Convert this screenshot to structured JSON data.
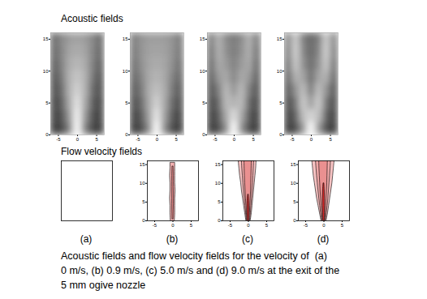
{
  "figure": {
    "row_titles": [
      "Acoustic fields",
      "Flow velocity fields"
    ],
    "panel_labels": [
      "(a)",
      "(b)",
      "(c)",
      "(d)"
    ],
    "caption": [
      "Acoustic fields and flow velocity fields for the velocity of  (a)",
      "0 m/s, (b) 0.9 m/s, (c) 5.0 m/s and (d) 9.0 m/s at the exit of the",
      "5 mm ogive nozzle"
    ]
  },
  "chart_data": [
    {
      "type": "heatmap",
      "xlim": [
        -7,
        7
      ],
      "ylim": [
        0,
        16
      ],
      "xticks": [
        -5,
        0,
        5
      ],
      "yticks": [
        0,
        5,
        10,
        15
      ],
      "zlim": [
        0,
        1
      ],
      "x_bins": [
        -7,
        -5,
        -3,
        -1,
        1,
        3,
        5,
        7
      ],
      "y_bins": [
        0,
        2,
        4,
        6,
        8,
        10,
        12,
        14,
        16
      ],
      "cells": [
        [
          0.12,
          0.18,
          0.45,
          1.0,
          0.45,
          0.18,
          0.12
        ],
        [
          0.14,
          0.22,
          0.55,
          0.95,
          0.55,
          0.22,
          0.14
        ],
        [
          0.16,
          0.28,
          0.62,
          0.88,
          0.62,
          0.28,
          0.16
        ],
        [
          0.2,
          0.34,
          0.66,
          0.8,
          0.66,
          0.34,
          0.2
        ],
        [
          0.22,
          0.4,
          0.66,
          0.74,
          0.66,
          0.4,
          0.22
        ],
        [
          0.26,
          0.44,
          0.63,
          0.68,
          0.63,
          0.44,
          0.26
        ],
        [
          0.3,
          0.46,
          0.6,
          0.62,
          0.6,
          0.46,
          0.3
        ],
        [
          0.32,
          0.47,
          0.56,
          0.58,
          0.56,
          0.47,
          0.32
        ]
      ]
    },
    {
      "type": "heatmap",
      "xlim": [
        -7,
        7
      ],
      "ylim": [
        0,
        16
      ],
      "xticks": [
        -5,
        0,
        5
      ],
      "yticks": [
        0,
        5,
        10,
        15
      ],
      "zlim": [
        0,
        1
      ],
      "x_bins": [
        -7,
        -5,
        -3,
        -1,
        1,
        3,
        5,
        7
      ],
      "y_bins": [
        0,
        2,
        4,
        6,
        8,
        10,
        12,
        14,
        16
      ],
      "cells": [
        [
          0.12,
          0.2,
          0.5,
          1.0,
          0.5,
          0.2,
          0.12
        ],
        [
          0.15,
          0.26,
          0.58,
          0.9,
          0.58,
          0.26,
          0.15
        ],
        [
          0.2,
          0.33,
          0.62,
          0.8,
          0.62,
          0.33,
          0.2
        ],
        [
          0.25,
          0.4,
          0.64,
          0.72,
          0.64,
          0.4,
          0.25
        ],
        [
          0.3,
          0.45,
          0.62,
          0.66,
          0.62,
          0.45,
          0.3
        ],
        [
          0.34,
          0.5,
          0.6,
          0.62,
          0.6,
          0.5,
          0.34
        ],
        [
          0.38,
          0.52,
          0.58,
          0.58,
          0.58,
          0.52,
          0.38
        ],
        [
          0.4,
          0.52,
          0.56,
          0.56,
          0.56,
          0.52,
          0.4
        ]
      ]
    },
    {
      "type": "heatmap",
      "xlim": [
        -7,
        7
      ],
      "ylim": [
        0,
        16
      ],
      "xticks": [
        -5,
        0,
        5
      ],
      "yticks": [
        0,
        5,
        10,
        15
      ],
      "zlim": [
        0,
        1
      ],
      "x_bins": [
        -7,
        -5,
        -3,
        -1,
        1,
        3,
        5,
        7
      ],
      "y_bins": [
        0,
        2,
        4,
        6,
        8,
        10,
        12,
        14,
        16
      ],
      "cells": [
        [
          0.12,
          0.2,
          0.5,
          1.0,
          0.5,
          0.2,
          0.12
        ],
        [
          0.15,
          0.25,
          0.62,
          0.85,
          0.62,
          0.25,
          0.15
        ],
        [
          0.18,
          0.32,
          0.7,
          0.65,
          0.7,
          0.32,
          0.18
        ],
        [
          0.22,
          0.42,
          0.7,
          0.52,
          0.7,
          0.42,
          0.22
        ],
        [
          0.25,
          0.55,
          0.62,
          0.45,
          0.62,
          0.55,
          0.25
        ],
        [
          0.3,
          0.62,
          0.55,
          0.42,
          0.55,
          0.62,
          0.3
        ],
        [
          0.35,
          0.65,
          0.5,
          0.4,
          0.5,
          0.65,
          0.35
        ],
        [
          0.4,
          0.66,
          0.48,
          0.4,
          0.48,
          0.66,
          0.4
        ]
      ]
    },
    {
      "type": "heatmap",
      "xlim": [
        -7,
        7
      ],
      "ylim": [
        0,
        16
      ],
      "xticks": [
        -5,
        0,
        5
      ],
      "yticks": [
        0,
        5,
        10,
        15
      ],
      "zlim": [
        0,
        1
      ],
      "x_bins": [
        -7,
        -5,
        -3,
        -1,
        1,
        3,
        5,
        7
      ],
      "y_bins": [
        0,
        2,
        4,
        6,
        8,
        10,
        12,
        14,
        16
      ],
      "cells": [
        [
          0.12,
          0.2,
          0.55,
          1.0,
          0.55,
          0.2,
          0.12
        ],
        [
          0.15,
          0.28,
          0.72,
          0.8,
          0.72,
          0.28,
          0.15
        ],
        [
          0.18,
          0.38,
          0.78,
          0.55,
          0.78,
          0.38,
          0.18
        ],
        [
          0.22,
          0.52,
          0.72,
          0.4,
          0.72,
          0.52,
          0.22
        ],
        [
          0.28,
          0.66,
          0.6,
          0.35,
          0.6,
          0.66,
          0.28
        ],
        [
          0.34,
          0.76,
          0.5,
          0.33,
          0.5,
          0.76,
          0.34
        ],
        [
          0.4,
          0.8,
          0.45,
          0.32,
          0.45,
          0.8,
          0.4
        ],
        [
          0.45,
          0.78,
          0.42,
          0.32,
          0.42,
          0.78,
          0.45
        ]
      ]
    },
    {
      "type": "contour",
      "tick_labels": false,
      "xlim": [
        -7,
        7
      ],
      "ylim": [
        0,
        16
      ],
      "contours": []
    },
    {
      "type": "contour",
      "xlim": [
        -7,
        7
      ],
      "ylim": [
        0,
        16
      ],
      "xticks": [
        -5,
        0,
        5
      ],
      "yticks": [
        0,
        5,
        10,
        15
      ],
      "contours": [
        {
          "color": "#f2b0b0",
          "y": [
            0,
            2,
            4,
            6,
            8,
            10,
            12,
            14,
            15.5
          ],
          "left": [
            -0.6,
            -0.7,
            -0.7,
            -0.8,
            -0.7,
            -0.7,
            -0.8,
            -0.7,
            -0.7
          ],
          "right": [
            0.5,
            0.6,
            0.6,
            0.6,
            0.7,
            0.6,
            0.6,
            0.6,
            0.6
          ]
        },
        {
          "color": "#e88a8a",
          "y": [
            0.5,
            3,
            6,
            9,
            12,
            14.5
          ],
          "left": [
            -0.15,
            -0.2,
            -0.2,
            -0.2,
            -0.2,
            -0.15
          ],
          "right": [
            0.15,
            0.2,
            0.25,
            0.2,
            0.2,
            0.15
          ]
        }
      ]
    },
    {
      "type": "contour",
      "xlim": [
        -7,
        7
      ],
      "ylim": [
        0,
        16
      ],
      "xticks": [
        -5,
        0,
        5
      ],
      "yticks": [
        0,
        5,
        10,
        15
      ],
      "contours": [
        {
          "color": "#f6c2c2",
          "y": [
            0,
            2,
            4,
            6,
            8,
            10,
            12,
            14,
            16
          ],
          "left": [
            -0.6,
            -0.9,
            -1.2,
            -1.5,
            -1.8,
            -2.0,
            -2.3,
            -2.5,
            -2.7
          ],
          "right": [
            0.6,
            0.9,
            1.1,
            1.3,
            1.5,
            1.7,
            1.9,
            2.1,
            2.2
          ]
        },
        {
          "color": "#f0a8a8",
          "y": [
            0,
            2,
            4,
            6,
            8,
            10,
            12,
            14,
            16
          ],
          "left": [
            -0.45,
            -0.65,
            -0.85,
            -1.05,
            -1.25,
            -1.4,
            -1.55,
            -1.7,
            -1.8
          ],
          "right": [
            0.45,
            0.65,
            0.8,
            0.95,
            1.1,
            1.25,
            1.35,
            1.45,
            1.55
          ]
        },
        {
          "color": "#ea9090",
          "y": [
            0,
            2,
            4,
            6,
            8,
            10,
            12,
            14,
            16
          ],
          "left": [
            -0.3,
            -0.45,
            -0.55,
            -0.7,
            -0.8,
            -0.9,
            -1.0,
            -1.05,
            -1.1
          ],
          "right": [
            0.3,
            0.4,
            0.5,
            0.6,
            0.7,
            0.75,
            0.8,
            0.85,
            0.9
          ]
        },
        {
          "color": "#d42a2a",
          "y": [
            0,
            1.5,
            3,
            4.5,
            6,
            7
          ],
          "left": [
            -0.15,
            -0.22,
            -0.25,
            -0.25,
            -0.2,
            -0.1
          ],
          "right": [
            0.15,
            0.2,
            0.22,
            0.2,
            0.15,
            0.08
          ]
        }
      ]
    },
    {
      "type": "contour",
      "xlim": [
        -7,
        7
      ],
      "ylim": [
        0,
        16
      ],
      "xticks": [
        -5,
        0,
        5
      ],
      "yticks": [
        0,
        5,
        10,
        15
      ],
      "contours": [
        {
          "color": "#f6c2c2",
          "y": [
            0,
            2,
            4,
            6,
            8,
            10,
            12,
            14,
            16
          ],
          "left": [
            -0.7,
            -1.1,
            -1.5,
            -1.9,
            -2.2,
            -2.5,
            -2.8,
            -3.0,
            -3.2
          ],
          "right": [
            0.7,
            1.1,
            1.4,
            1.7,
            2.0,
            2.3,
            2.5,
            2.7,
            2.9
          ]
        },
        {
          "color": "#f0a8a8",
          "y": [
            0,
            2,
            4,
            6,
            8,
            10,
            12,
            14,
            16
          ],
          "left": [
            -0.5,
            -0.8,
            -1.05,
            -1.3,
            -1.5,
            -1.7,
            -1.9,
            -2.05,
            -2.2
          ],
          "right": [
            0.5,
            0.75,
            1.0,
            1.2,
            1.35,
            1.5,
            1.65,
            1.8,
            1.9
          ]
        },
        {
          "color": "#ea9090",
          "y": [
            0,
            2,
            4,
            6,
            8,
            10,
            12,
            14,
            16
          ],
          "left": [
            -0.35,
            -0.5,
            -0.65,
            -0.8,
            -0.95,
            -1.05,
            -1.15,
            -1.25,
            -1.3
          ],
          "right": [
            0.35,
            0.5,
            0.6,
            0.7,
            0.8,
            0.9,
            0.95,
            1.0,
            1.05
          ]
        },
        {
          "color": "#d42a2a",
          "y": [
            0,
            2,
            4,
            6,
            8,
            10
          ],
          "left": [
            -0.18,
            -0.25,
            -0.3,
            -0.3,
            -0.25,
            -0.12
          ],
          "right": [
            0.18,
            0.24,
            0.28,
            0.26,
            0.2,
            0.1
          ]
        }
      ]
    }
  ]
}
